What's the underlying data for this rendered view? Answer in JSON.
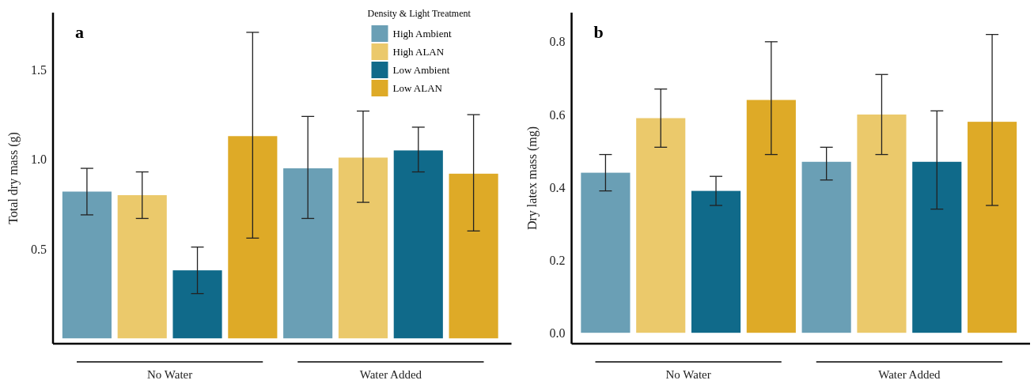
{
  "chart_data": [
    {
      "type": "bar",
      "title": "a",
      "ylabel": "Total dry mass (g)",
      "categories": [
        "No Water",
        "Water Added"
      ],
      "ylim": [
        -0.03,
        1.82
      ],
      "yticks": [
        {
          "value": 0.5,
          "label": "0.5"
        },
        {
          "value": 1,
          "label": "1.0"
        },
        {
          "value": 1.5,
          "label": "1.5"
        }
      ],
      "grid": false,
      "legend": "top right",
      "legend_title": "Density & Light Treatment",
      "series": [
        {
          "name": "High Ambient",
          "color": "#6a9fb5",
          "values": [
            0.82,
            0.95
          ],
          "errors": [
            [
              0.69,
              0.95
            ],
            [
              0.67,
              1.24
            ]
          ]
        },
        {
          "name": "High ALAN",
          "color": "#ebc96b",
          "values": [
            0.8,
            1.01
          ],
          "errors": [
            [
              0.67,
              0.93
            ],
            [
              0.76,
              1.27
            ]
          ]
        },
        {
          "name": "Low Ambient",
          "color": "#106a8a",
          "values": [
            0.38,
            1.05
          ],
          "errors": [
            [
              0.25,
              0.51
            ],
            [
              0.93,
              1.18
            ]
          ]
        },
        {
          "name": "Low ALAN",
          "color": "#deaa27",
          "values": [
            1.13,
            0.92
          ],
          "errors": [
            [
              0.56,
              1.71
            ],
            [
              0.6,
              1.25
            ]
          ]
        }
      ]
    },
    {
      "type": "bar",
      "title": "b",
      "ylabel": "Dry latex mass (mg)",
      "categories": [
        "No Water",
        "Water Added"
      ],
      "ylim": [
        -0.03,
        0.88
      ],
      "yticks": [
        {
          "value": 0,
          "label": "0.0"
        },
        {
          "value": 0.2,
          "label": "0.2"
        },
        {
          "value": 0.4,
          "label": "0.4"
        },
        {
          "value": 0.6,
          "label": "0.6"
        },
        {
          "value": 0.8,
          "label": "0.8"
        }
      ],
      "grid": false,
      "legend": false,
      "series": [
        {
          "color": "#6a9fb5",
          "values": [
            0.44,
            0.47
          ],
          "errors": [
            [
              0.39,
              0.49
            ],
            [
              0.42,
              0.51
            ]
          ]
        },
        {
          "color": "#ebc96b",
          "values": [
            0.59,
            0.6
          ],
          "errors": [
            [
              0.51,
              0.67
            ],
            [
              0.49,
              0.71
            ]
          ]
        },
        {
          "color": "#106a8a",
          "values": [
            0.39,
            0.47
          ],
          "errors": [
            [
              0.35,
              0.43
            ],
            [
              0.34,
              0.61
            ]
          ]
        },
        {
          "color": "#deaa27",
          "values": [
            0.64,
            0.58
          ],
          "errors": [
            [
              0.49,
              0.8
            ],
            [
              0.35,
              0.82
            ]
          ]
        }
      ]
    }
  ]
}
